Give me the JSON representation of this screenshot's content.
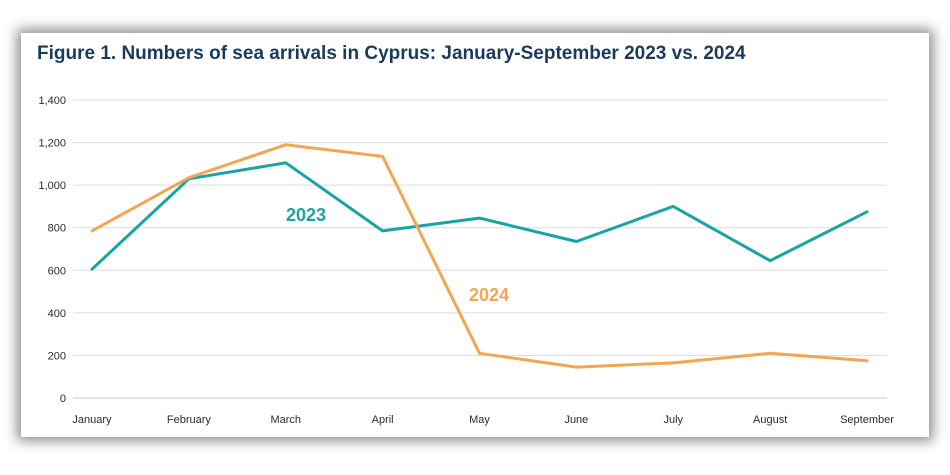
{
  "chart_data": {
    "type": "line",
    "title": "Figure 1. Numbers of sea arrivals in Cyprus: January-September 2023 vs. 2024",
    "xlabel": "",
    "ylabel": "",
    "ylim": [
      0,
      1400
    ],
    "yticks": [
      0,
      200,
      400,
      600,
      800,
      1000,
      1200,
      1400
    ],
    "ytick_labels": [
      "0",
      "200",
      "400",
      "600",
      "800",
      "1,000",
      "1,200",
      "1,400"
    ],
    "categories": [
      "January",
      "February",
      "March",
      "April",
      "May",
      "June",
      "July",
      "August",
      "September"
    ],
    "grid": "horizontal",
    "series": [
      {
        "name": "2023",
        "color": "#1aa3a3",
        "values": [
          605,
          1030,
          1105,
          785,
          845,
          735,
          900,
          645,
          875
        ]
      },
      {
        "name": "2024",
        "color": "#f2a654",
        "values": [
          785,
          1035,
          1190,
          1135,
          210,
          145,
          165,
          210,
          175
        ]
      }
    ]
  }
}
